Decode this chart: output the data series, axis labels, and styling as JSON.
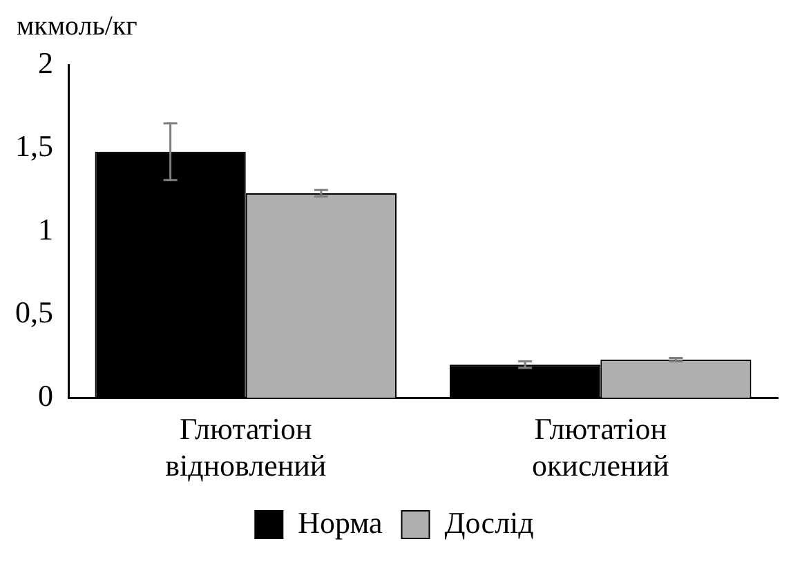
{
  "chart_data": {
    "type": "bar",
    "ylabel": "мкмоль/кг",
    "categories": [
      "Глютатіон відновлений",
      "Глютатіон окислений"
    ],
    "series": [
      {
        "name": "Норма",
        "color": "#000000",
        "values": [
          1.48,
          0.2
        ],
        "errors": [
          0.17,
          0.02
        ]
      },
      {
        "name": "Дослід",
        "color": "#b0b0b0",
        "values": [
          1.23,
          0.23
        ],
        "errors": [
          0.02,
          0.01
        ]
      }
    ],
    "ylim": [
      0,
      2
    ],
    "yticks": [
      0,
      {
        "value": 0.5,
        "label": "0,5"
      },
      1,
      {
        "value": 1.5,
        "label": "1,5"
      },
      2
    ],
    "grid": false,
    "legend": "bottom"
  }
}
